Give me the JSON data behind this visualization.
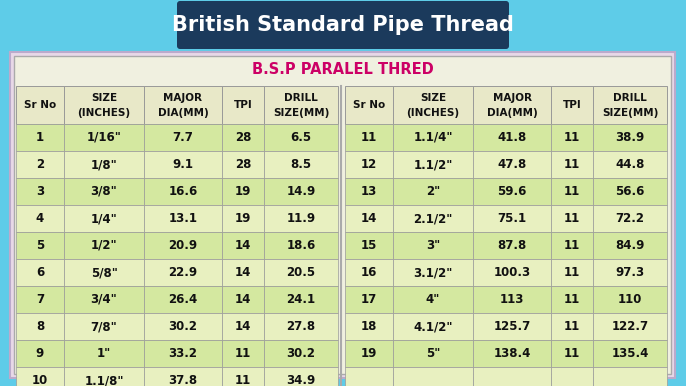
{
  "title": "British Standard Pipe Thread",
  "subtitle": "B.S.P PARALEL THRED",
  "headers_line1": [
    "Sr No",
    "SIZE",
    "MAJOR",
    "TPI",
    "DRILL"
  ],
  "headers_line2": [
    "",
    "(INCHES)",
    "DIA(MM)",
    "",
    "SIZE(MM)"
  ],
  "left_table": [
    [
      "1",
      "1/16\"",
      "7.7",
      "28",
      "6.5"
    ],
    [
      "2",
      "1/8\"",
      "9.1",
      "28",
      "8.5"
    ],
    [
      "3",
      "3/8\"",
      "16.6",
      "19",
      "14.9"
    ],
    [
      "4",
      "1/4\"",
      "13.1",
      "19",
      "11.9"
    ],
    [
      "5",
      "1/2\"",
      "20.9",
      "14",
      "18.6"
    ],
    [
      "6",
      "5/8\"",
      "22.9",
      "14",
      "20.5"
    ],
    [
      "7",
      "3/4\"",
      "26.4",
      "14",
      "24.1"
    ],
    [
      "8",
      "7/8\"",
      "30.2",
      "14",
      "27.8"
    ],
    [
      "9",
      "1\"",
      "33.2",
      "11",
      "30.2"
    ],
    [
      "10",
      "1.1/8\"",
      "37.8",
      "11",
      "34.9"
    ]
  ],
  "right_table": [
    [
      "11",
      "1.1/4\"",
      "41.8",
      "11",
      "38.9"
    ],
    [
      "12",
      "1.1/2\"",
      "47.8",
      "11",
      "44.8"
    ],
    [
      "13",
      "2\"",
      "59.6",
      "11",
      "56.6"
    ],
    [
      "14",
      "2.1/2\"",
      "75.1",
      "11",
      "72.2"
    ],
    [
      "15",
      "3\"",
      "87.8",
      "11",
      "84.9"
    ],
    [
      "16",
      "3.1/2\"",
      "100.3",
      "11",
      "97.3"
    ],
    [
      "17",
      "4\"",
      "113",
      "11",
      "110"
    ],
    [
      "18",
      "4.1/2\"",
      "125.7",
      "11",
      "122.7"
    ],
    [
      "19",
      "5\"",
      "138.4",
      "11",
      "135.4"
    ],
    [
      "",
      "",
      "",
      "",
      ""
    ]
  ],
  "title_bg": "#1b3a5c",
  "title_color": "#ffffff",
  "subtitle_color": "#cc0066",
  "outer_bg": "#5ecce8",
  "table_outer_bg": "#e8d8e8",
  "table_inner_bg": "#f0f0e0",
  "header_bg": "#e8e8c8",
  "row_even_bg": "#d4e8a0",
  "row_odd_bg": "#e8f0c0",
  "drill_col_bg": "#ccdd88",
  "border_color": "#999999",
  "text_color": "#111111"
}
